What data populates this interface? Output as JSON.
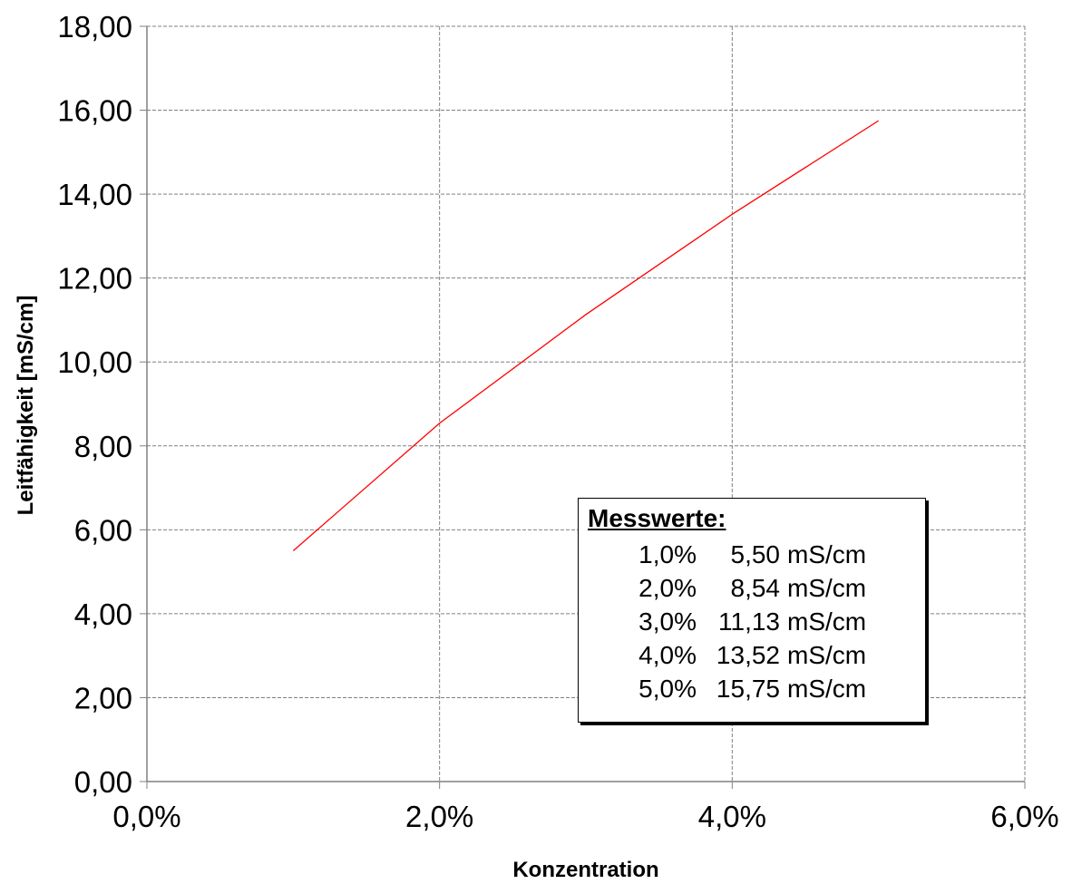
{
  "chart_data": {
    "type": "line",
    "xlabel": "Konzentration",
    "ylabel": "Leitfähigkeit  [mS/cm]",
    "xlim": [
      0,
      6
    ],
    "ylim": [
      0,
      18
    ],
    "x_ticks": [
      "0,0%",
      "2,0%",
      "4,0%",
      "6,0%"
    ],
    "y_ticks": [
      "0,00",
      "2,00",
      "4,00",
      "6,00",
      "8,00",
      "10,00",
      "12,00",
      "14,00",
      "16,00",
      "18,00"
    ],
    "grid": true,
    "series": [
      {
        "x": [
          1,
          2,
          3,
          4,
          5
        ],
        "values": [
          5.5,
          8.54,
          11.13,
          13.52,
          15.75
        ],
        "color": "#ff0000"
      }
    ],
    "legend_box": {
      "title": "Messwerte:",
      "rows": [
        {
          "conc": "1,0%",
          "value": "5,50",
          "unit": "mS/cm"
        },
        {
          "conc": "2,0%",
          "value": "8,54",
          "unit": "mS/cm"
        },
        {
          "conc": "3,0%",
          "value": "11,13",
          "unit": "mS/cm"
        },
        {
          "conc": "4,0%",
          "value": "13,52",
          "unit": "mS/cm"
        },
        {
          "conc": "5,0%",
          "value": "15,75",
          "unit": "mS/cm"
        }
      ]
    }
  }
}
